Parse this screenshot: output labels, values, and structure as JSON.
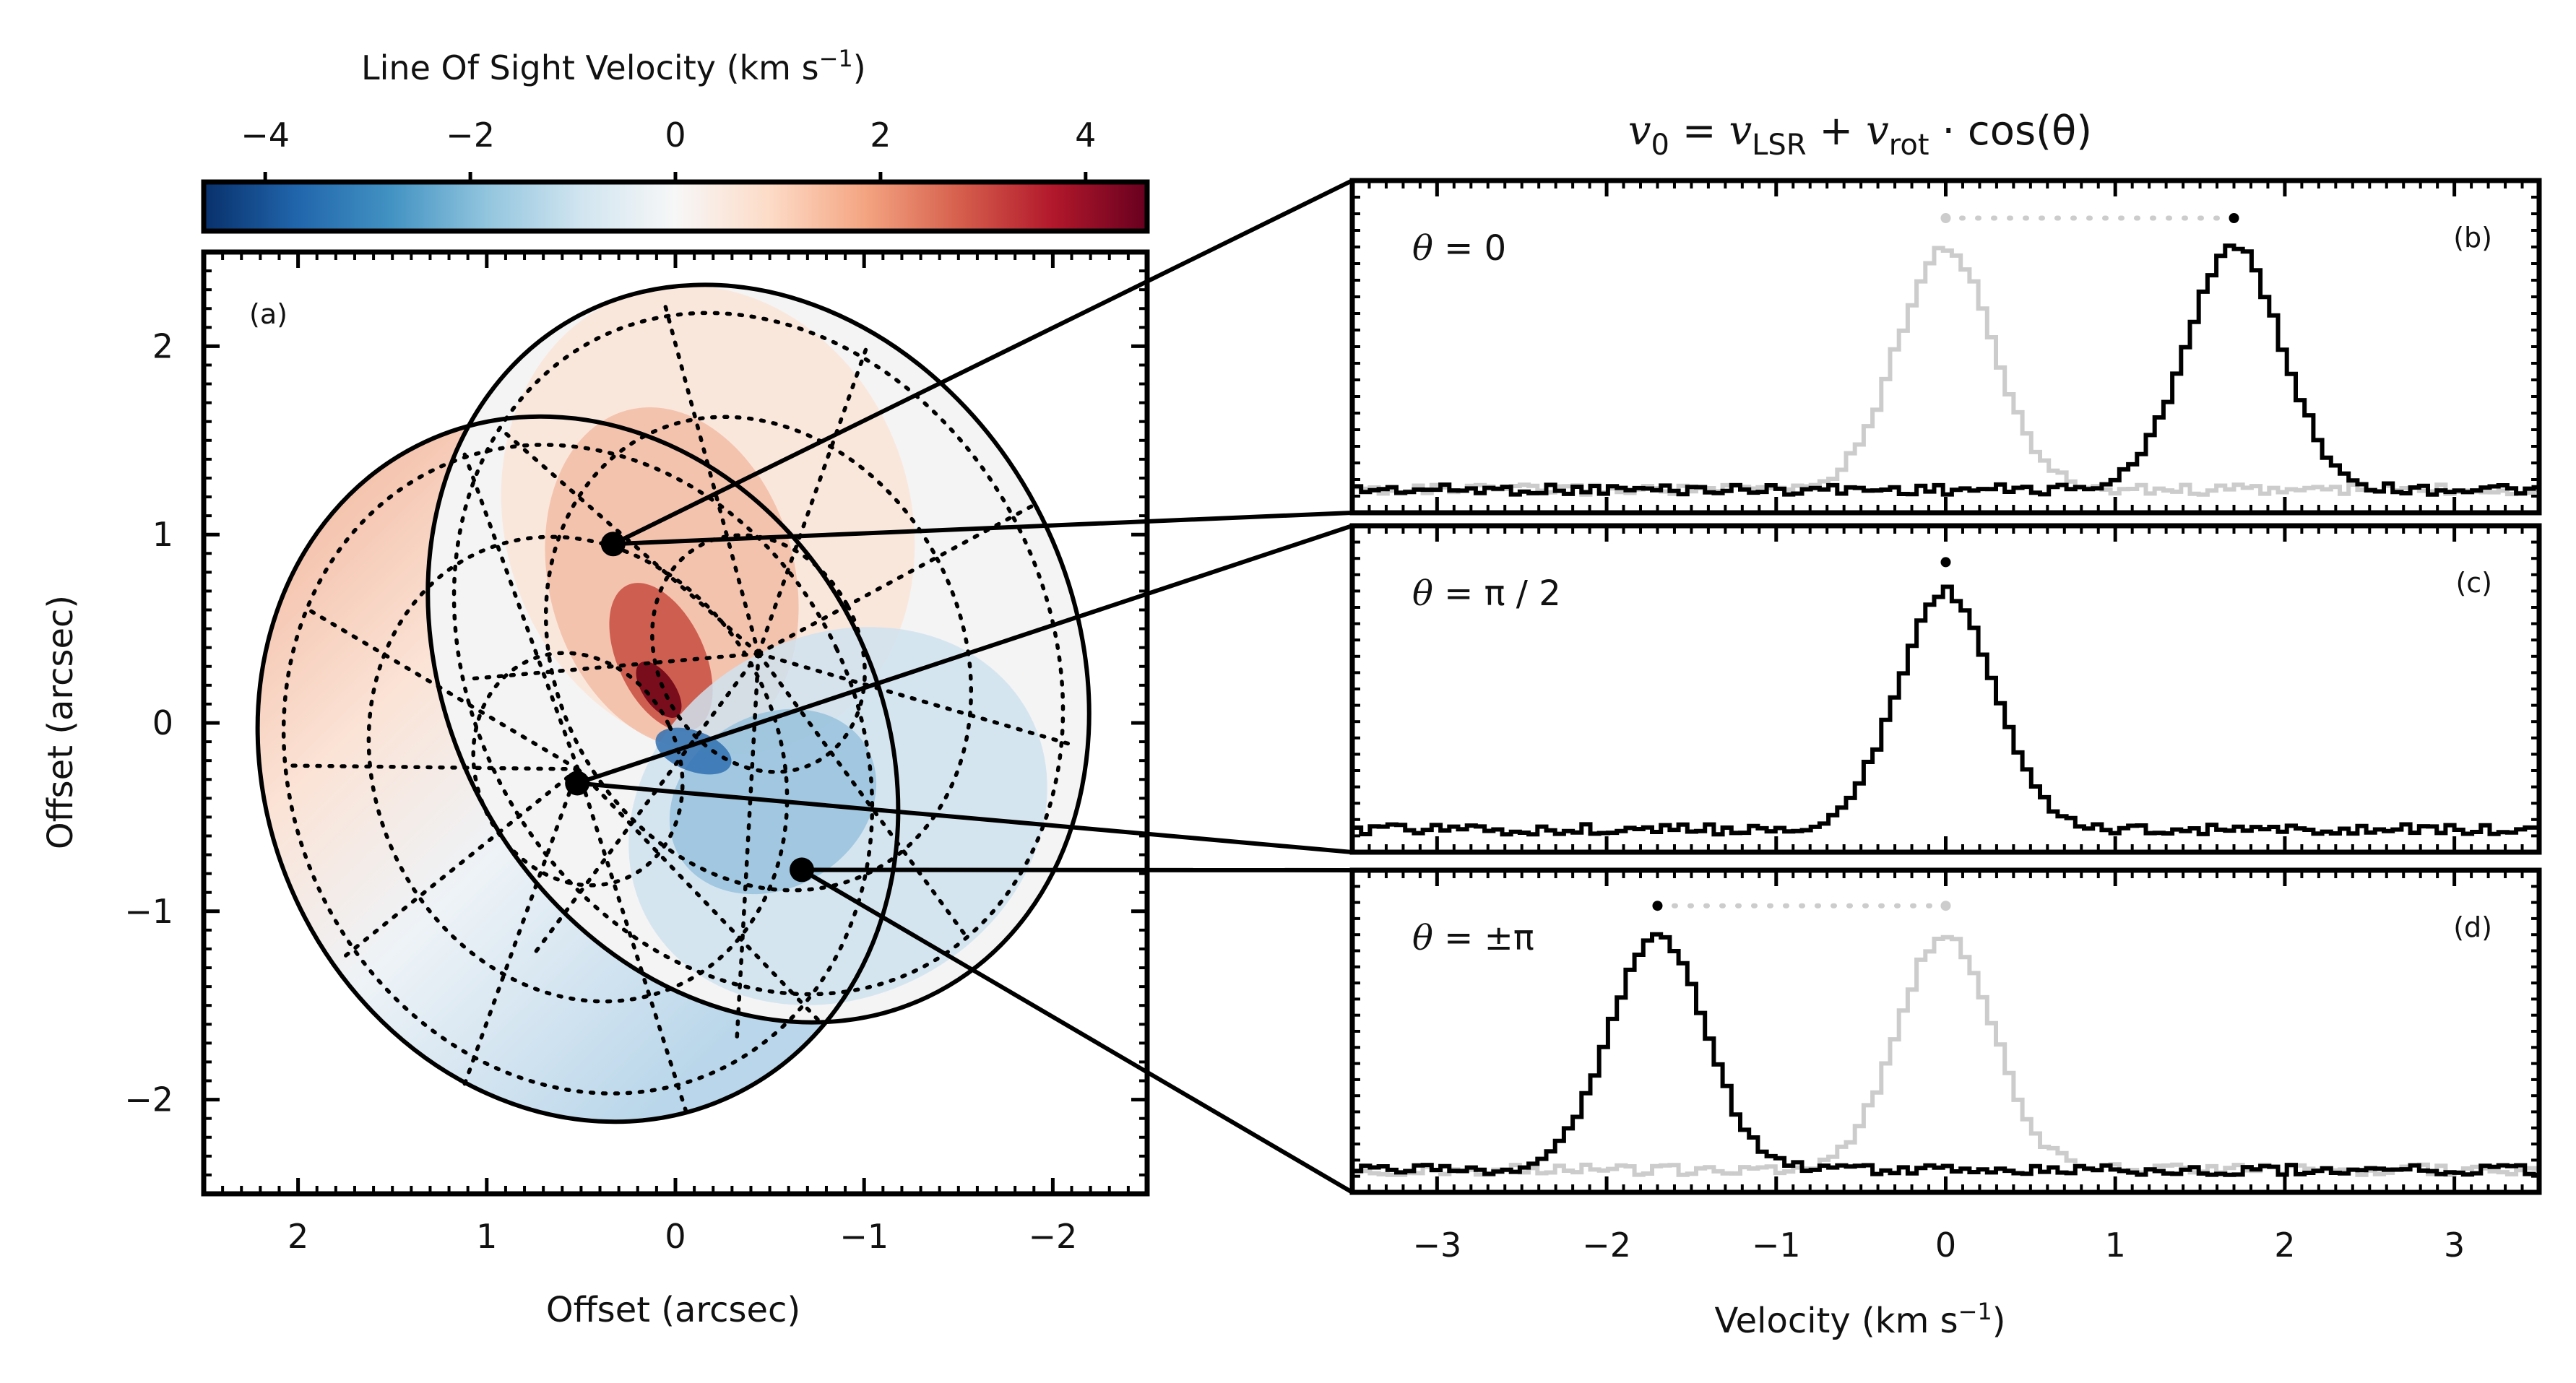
{
  "colorbar": {
    "label": "Line Of Sight Velocity   (km s",
    "label_sup": "−1",
    "label_close": ")",
    "vmin": -4.6,
    "vmax": 4.6,
    "ticks": [
      {
        "value": -4,
        "label": "−4"
      },
      {
        "value": -2,
        "label": "−2"
      },
      {
        "value": 0,
        "label": "0"
      },
      {
        "value": 2,
        "label": "2"
      },
      {
        "value": 4,
        "label": "4"
      }
    ],
    "colors": [
      "#08306b",
      "#2166ac",
      "#4393c3",
      "#92c5de",
      "#d1e5f0",
      "#f7f7f7",
      "#fddbc7",
      "#f4a582",
      "#d6604d",
      "#b2182b",
      "#67001f"
    ]
  },
  "equation": {
    "v0": "v",
    "v0_sub": "0",
    "eq": " = ",
    "vlsr": "v",
    "vlsr_sub": "LSR",
    "plus": " + ",
    "vrot": "v",
    "vrot_sub": "rot",
    "rest": " · cos(θ)"
  },
  "map": {
    "label": "(a)",
    "xlabel": "Offset   (arcsec)",
    "ylabel": "Offset   (arcsec)",
    "xlim": [
      2.5,
      -2.5
    ],
    "ylim": [
      -2.5,
      2.5
    ],
    "xticks": [
      {
        "value": 2,
        "label": "2"
      },
      {
        "value": 1,
        "label": "1"
      },
      {
        "value": 0,
        "label": "0"
      },
      {
        "value": -1,
        "label": "−1"
      },
      {
        "value": -2,
        "label": "−2"
      }
    ],
    "yticks": [
      {
        "value": 2,
        "label": "2"
      },
      {
        "value": 1,
        "label": "1"
      },
      {
        "value": 0,
        "label": "0"
      },
      {
        "value": -1,
        "label": "−1"
      },
      {
        "value": -2,
        "label": "−2"
      }
    ],
    "markers": [
      {
        "name": "point-b",
        "x": 0.33,
        "y": 0.95
      },
      {
        "name": "point-c",
        "x": 0.52,
        "y": -0.32
      },
      {
        "name": "point-d",
        "x": -0.67,
        "y": -0.78
      }
    ]
  },
  "chart_data": {
    "type": "line",
    "title": "v0 = vLSR + vrot · cos(θ)",
    "xlabel": "Velocity   (km s−1)",
    "xlim": [
      -3.5,
      3.5
    ],
    "xticks": [
      {
        "value": -3,
        "label": "−3"
      },
      {
        "value": -2,
        "label": "−2"
      },
      {
        "value": -1,
        "label": "−1"
      },
      {
        "value": 0,
        "label": "0"
      },
      {
        "value": 1,
        "label": "1"
      },
      {
        "value": 2,
        "label": "2"
      },
      {
        "value": 3,
        "label": "3"
      }
    ],
    "series_color": "#000000",
    "reference_color": "#cccccc",
    "panels": [
      {
        "label": "(b)",
        "theta_prefix": "θ",
        "theta_text": " = 0",
        "center": 1.7,
        "reference_center": 0.0,
        "show_reference": true
      },
      {
        "label": "(c)",
        "theta_prefix": "θ",
        "theta_text": " = π / 2",
        "center": 0.0,
        "reference_center": 0.0,
        "show_reference": false
      },
      {
        "label": "(d)",
        "theta_prefix": "θ",
        "theta_text": " = ±π",
        "center": -1.7,
        "reference_center": 0.0,
        "show_reference": true
      }
    ]
  }
}
